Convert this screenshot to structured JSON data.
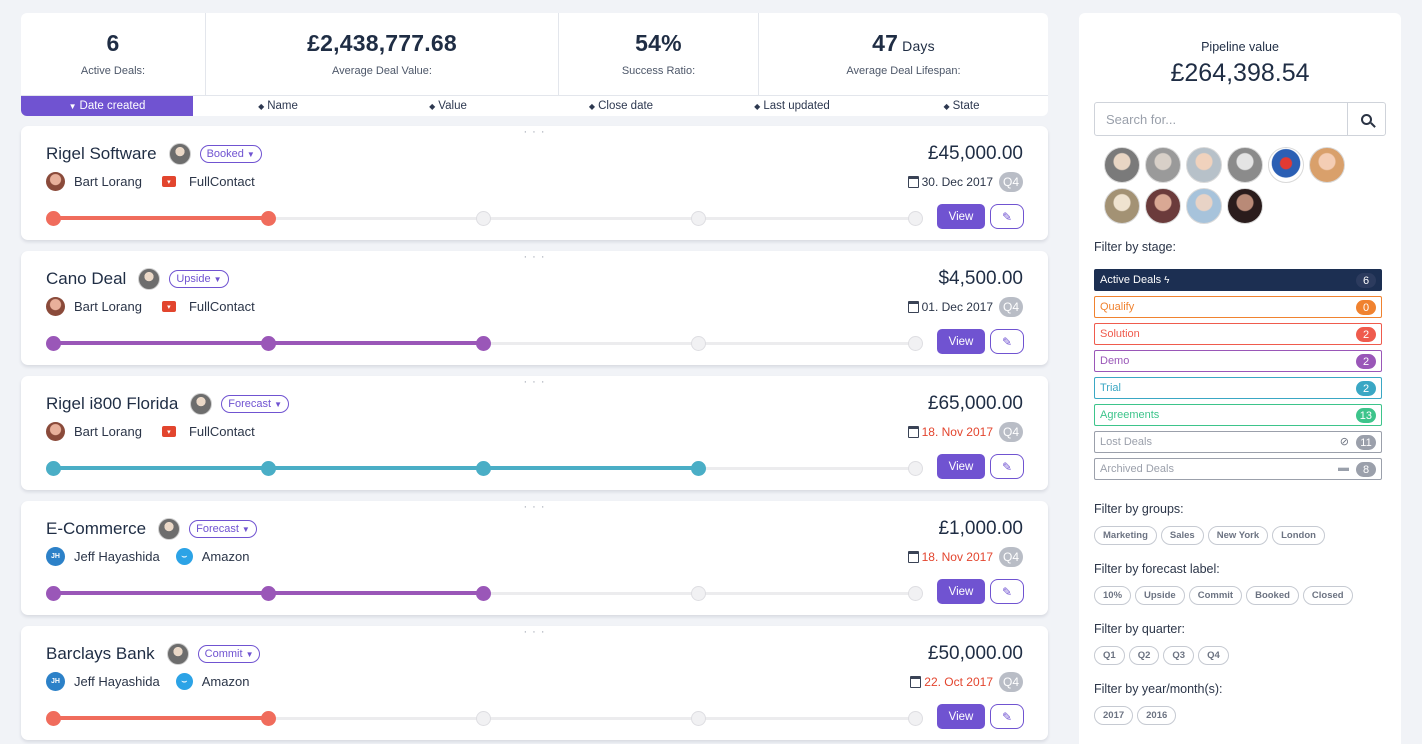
{
  "stats": [
    {
      "value": "6",
      "unit": "",
      "label": "Active Deals:"
    },
    {
      "value": "£2,438,777.68",
      "unit": "",
      "label": "Average Deal Value:"
    },
    {
      "value": "54%",
      "unit": "",
      "label": "Success Ratio:"
    },
    {
      "value": "47",
      "unit": "Days",
      "label": "Average Deal Lifespan:"
    }
  ],
  "sort": [
    {
      "label": "Date created",
      "icon": "caret-down-icon",
      "active": true
    },
    {
      "label": "Name",
      "icon": "sort-icon",
      "active": false
    },
    {
      "label": "Value",
      "icon": "sort-icon",
      "active": false
    },
    {
      "label": "Close date",
      "icon": "sort-icon",
      "active": false
    },
    {
      "label": "Last updated",
      "icon": "sort-icon",
      "active": false
    },
    {
      "label": "State",
      "icon": "sort-icon",
      "active": false
    }
  ],
  "deals": [
    {
      "name": "Rigel Software",
      "forecast": "Booked",
      "person": "Bart Lorang",
      "person_initials": "",
      "company": "FullContact",
      "company_logo": "fullcontact-logo",
      "amount": "£45,000.00",
      "date": "30. Dec 2017",
      "date_overdue": false,
      "quarter": "Q4",
      "stage_index": 1,
      "color": "#f06c5c",
      "view_label": "View"
    },
    {
      "name": "Cano Deal",
      "forecast": "Upside",
      "person": "Bart Lorang",
      "person_initials": "",
      "company": "FullContact",
      "company_logo": "fullcontact-logo",
      "amount": "$4,500.00",
      "date": "01. Dec 2017",
      "date_overdue": false,
      "quarter": "Q4",
      "stage_index": 2,
      "color": "#9a57b8",
      "view_label": "View"
    },
    {
      "name": "Rigel i800 Florida",
      "forecast": "Forecast",
      "person": "Bart Lorang",
      "person_initials": "",
      "company": "FullContact",
      "company_logo": "fullcontact-logo",
      "amount": "£65,000.00",
      "date": "18. Nov 2017",
      "date_overdue": true,
      "quarter": "Q4",
      "stage_index": 3,
      "color": "#4aaec6",
      "view_label": "View"
    },
    {
      "name": "E-Commerce",
      "forecast": "Forecast",
      "person": "Jeff Hayashida",
      "person_initials": "JH",
      "company": "Amazon",
      "company_logo": "amazon-logo",
      "amount": "£1,000.00",
      "date": "18. Nov 2017",
      "date_overdue": true,
      "quarter": "Q4",
      "stage_index": 2,
      "color": "#9a57b8",
      "view_label": "View"
    },
    {
      "name": "Barclays Bank",
      "forecast": "Commit",
      "person": "Jeff Hayashida",
      "person_initials": "JH",
      "company": "Amazon",
      "company_logo": "amazon-logo",
      "amount": "£50,000.00",
      "date": "22. Oct 2017",
      "date_overdue": true,
      "quarter": "Q4",
      "stage_index": 1,
      "color": "#f06c5c",
      "view_label": "View"
    }
  ],
  "panel": {
    "pipeline_label": "Pipeline value",
    "pipeline_value": "£264,398.54",
    "search_placeholder": "Search for...",
    "filter_stage_title": "Filter by stage:",
    "stages": [
      {
        "label": "Active Deals",
        "count": "6",
        "color": "#1c2f52",
        "filled": true,
        "icon": "bolt-icon"
      },
      {
        "label": "Qualify",
        "count": "0",
        "color": "#f0822f",
        "filled": false,
        "icon": ""
      },
      {
        "label": "Solution",
        "count": "2",
        "color": "#ef5b4d",
        "filled": false,
        "icon": ""
      },
      {
        "label": "Demo",
        "count": "2",
        "color": "#9a57b8",
        "filled": false,
        "icon": ""
      },
      {
        "label": "Trial",
        "count": "2",
        "color": "#3aa7c4",
        "filled": false,
        "icon": ""
      },
      {
        "label": "Agreements",
        "count": "13",
        "color": "#3dc48b",
        "filled": false,
        "icon": ""
      },
      {
        "label": "Lost Deals",
        "count": "11",
        "color": "#9ba0ab",
        "filled": false,
        "icon": "ban-icon"
      },
      {
        "label": "Archived Deals",
        "count": "8",
        "color": "#9ba0ab",
        "filled": false,
        "icon": "archive-icon"
      }
    ],
    "filter_groups_title": "Filter by groups:",
    "groups": [
      "Marketing",
      "Sales",
      "New York",
      "London"
    ],
    "filter_forecast_title": "Filter by forecast label:",
    "forecast_labels": [
      "10%",
      "Upside",
      "Commit",
      "Booked",
      "Closed"
    ],
    "filter_quarter_title": "Filter by quarter:",
    "quarters": [
      "Q1",
      "Q2",
      "Q3",
      "Q4"
    ],
    "filter_year_title": "Filter by year/month(s):",
    "years": [
      "2017",
      "2016"
    ]
  }
}
